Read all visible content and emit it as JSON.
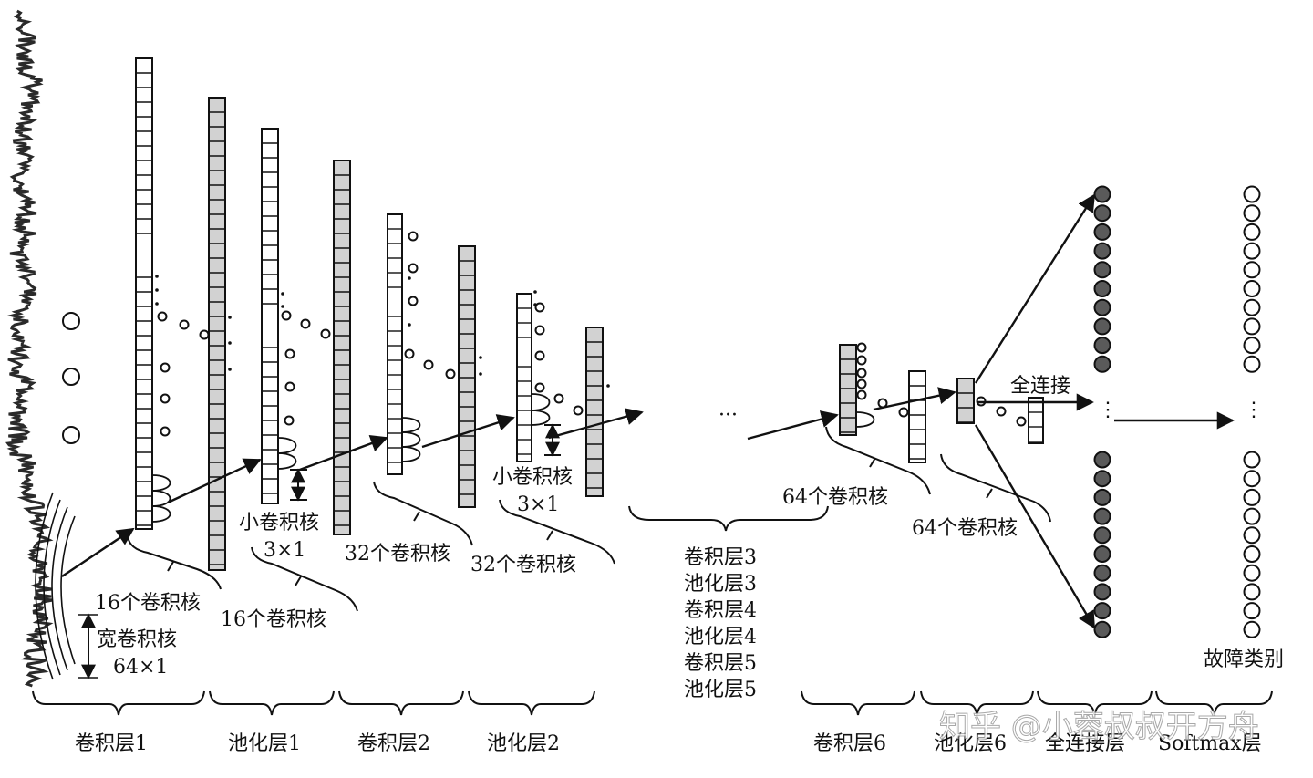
{
  "labels": {
    "wide_kernel": "宽卷积核",
    "wide_kernel_size": "64×1",
    "small_kernel": "小卷积核",
    "small_kernel_size": "3×1",
    "small_kernel_b": "小卷积核",
    "small_kernel_size_b": "3×1",
    "k16_a": "16个卷积核",
    "k16_b": "16个卷积核",
    "k32_a": "32个卷积核",
    "k32_b": "32个卷积核",
    "k64_a": "64个卷积核",
    "k64_b": "64个卷积核",
    "fully_connected": "全连接",
    "fault_class": "故障类别",
    "ellipsis_mid": "···",
    "vdots": "⋮"
  },
  "middle_layers": [
    "卷积层3",
    "池化层3",
    "卷积层4",
    "池化层4",
    "卷积层5",
    "池化层5"
  ],
  "bottom_labels": [
    "卷积层1",
    "池化层1",
    "卷积层2",
    "池化层2",
    "卷积层6",
    "池化层6",
    "全连接层",
    "Softmax层"
  ],
  "watermark": "知乎 @小蓉叔叔开方舟",
  "colors": {
    "line": "#111111",
    "gray_fill": "#d2d2d2",
    "node_fill": "#5a5a5a",
    "signal": "#2a2a2a"
  }
}
